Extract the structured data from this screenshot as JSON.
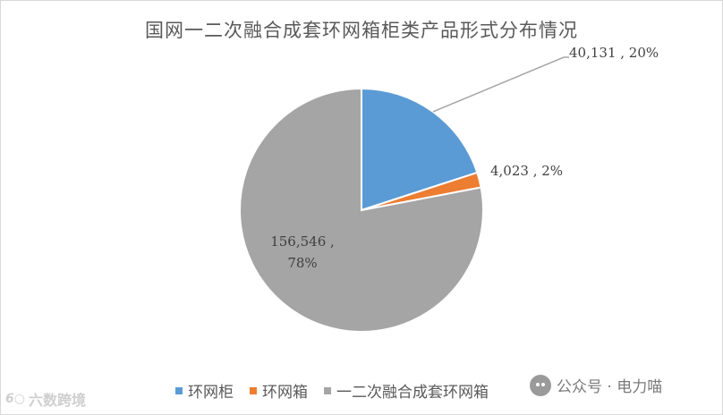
{
  "chart_data": {
    "type": "pie",
    "title": "国网一二次融合成套环网箱柜类产品形式分布情况",
    "slices": [
      {
        "label": "环网柜",
        "value": 40131,
        "value_text": "40,131",
        "percent": "20%",
        "color": "#5b9bd5"
      },
      {
        "label": "环网箱",
        "value": 4023,
        "value_text": "4,023",
        "percent": "2%",
        "color": "#ed7d31"
      },
      {
        "label": "一二次融合成套环网箱",
        "value": 156546,
        "value_text": "156,546",
        "percent": "78%",
        "color": "#a5a5a5"
      }
    ],
    "legend_position": "bottom"
  },
  "watermarks": {
    "left": "六数跨境",
    "right": "公众号 · 电力喵"
  }
}
